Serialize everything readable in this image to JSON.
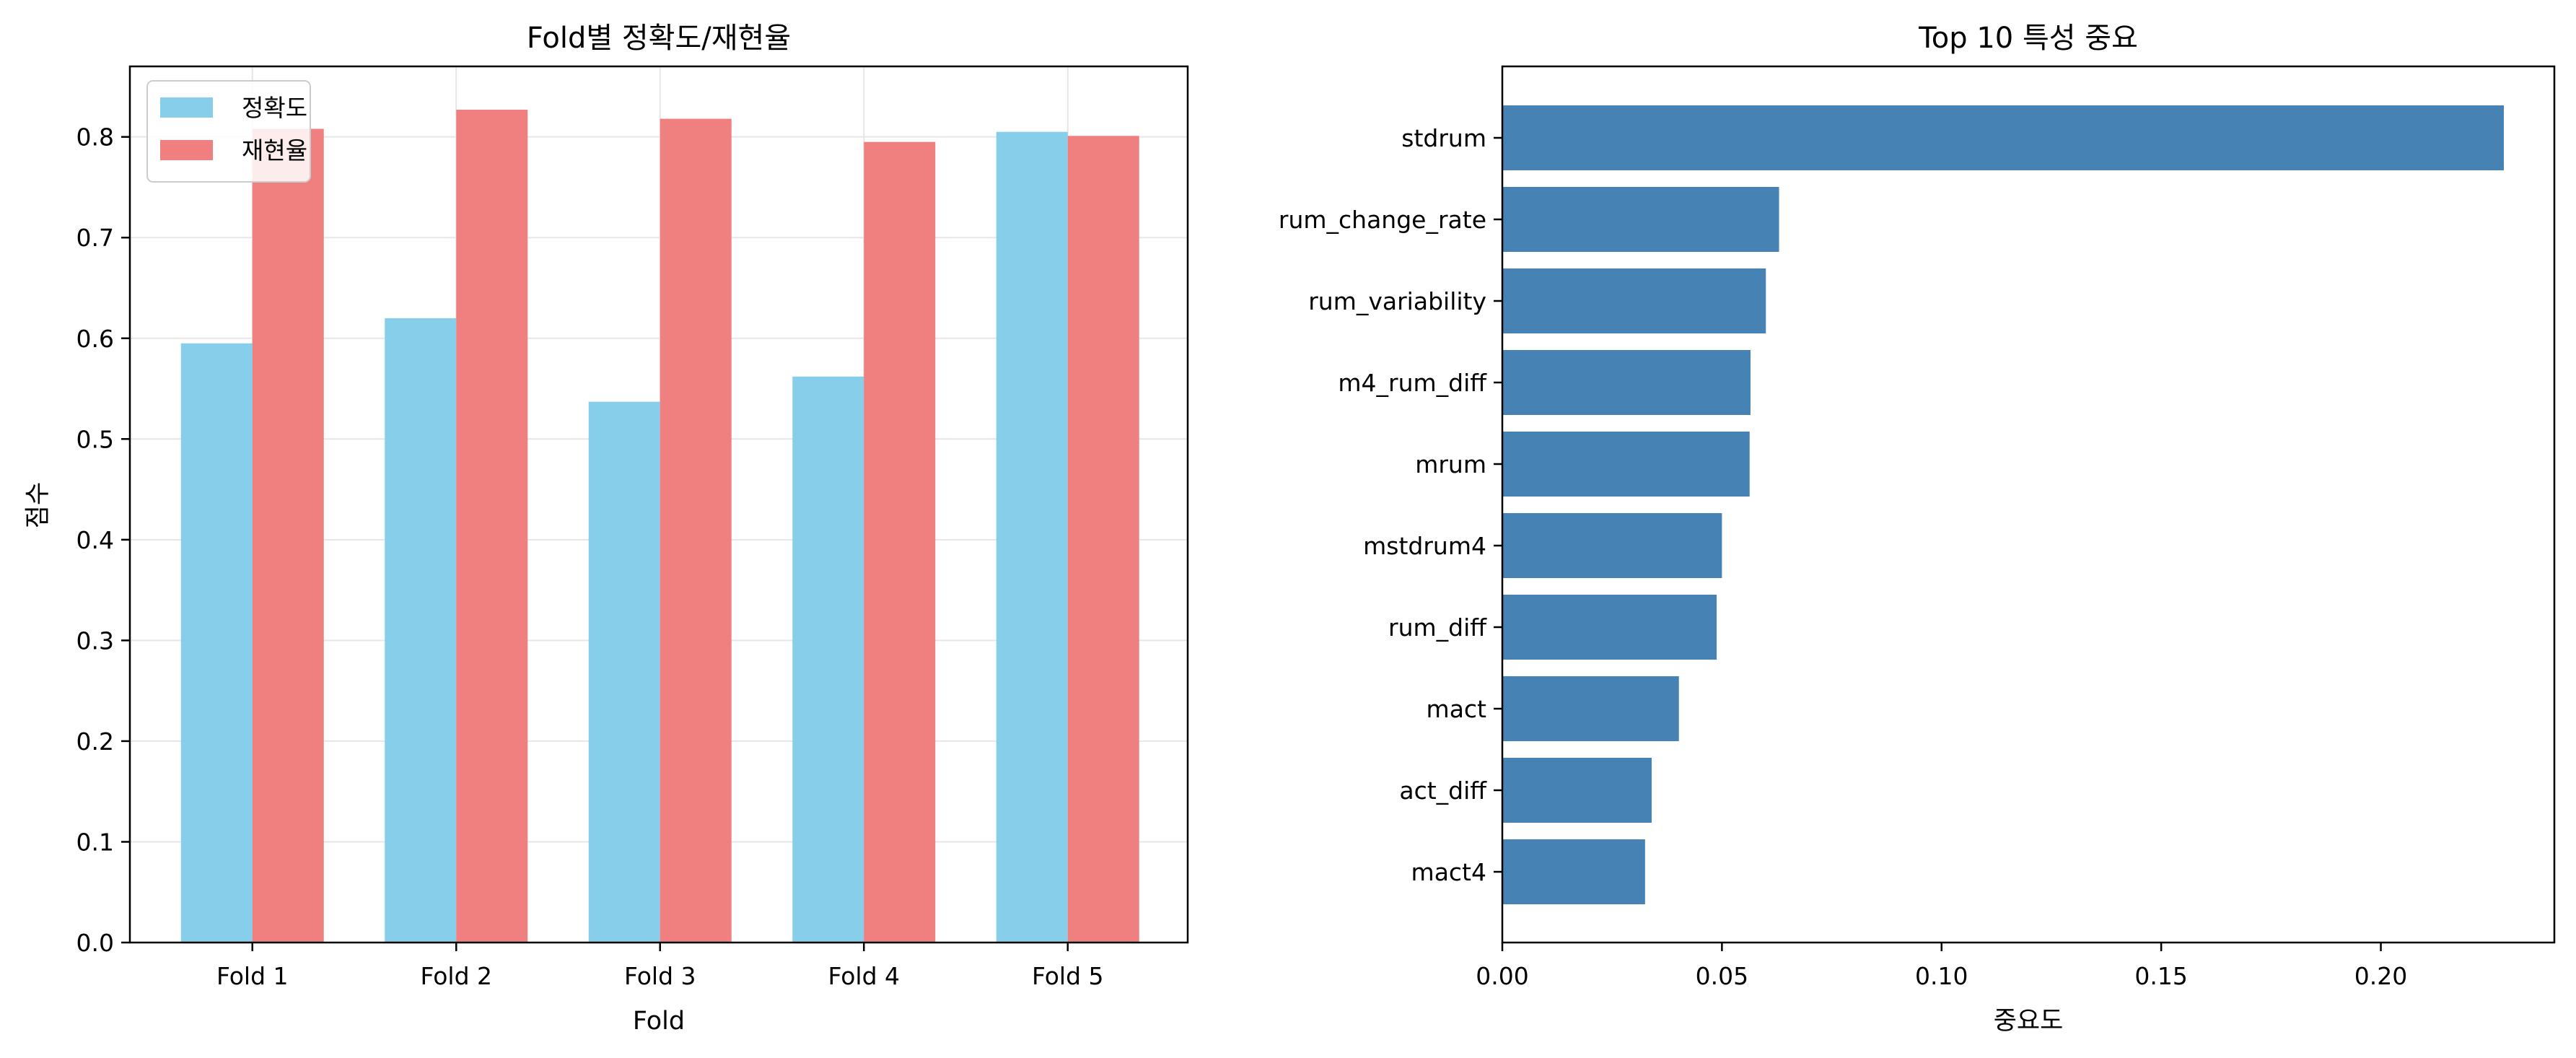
{
  "chart_data": [
    {
      "type": "bar",
      "title": "Fold별 정확도/재현율",
      "xlabel": "Fold",
      "ylabel": "점수",
      "categories": [
        "Fold 1",
        "Fold 2",
        "Fold 3",
        "Fold 4",
        "Fold 5"
      ],
      "ylim": [
        0,
        0.87
      ],
      "yticks": [
        "0.0",
        "0.1",
        "0.2",
        "0.3",
        "0.4",
        "0.5",
        "0.6",
        "0.7",
        "0.8"
      ],
      "grid": true,
      "legend": "upper-left",
      "series": [
        {
          "name": "정확도",
          "color": "#87CEEB",
          "values": [
            0.595,
            0.62,
            0.537,
            0.562,
            0.805
          ]
        },
        {
          "name": "재현율",
          "color": "#F08080",
          "values": [
            0.808,
            0.827,
            0.818,
            0.795,
            0.801
          ]
        }
      ]
    },
    {
      "type": "bar",
      "orientation": "horizontal",
      "title": "Top 10 특성 중요",
      "xlabel": "중요도",
      "ylabel": "",
      "color": "#4682B4",
      "xlim": [
        0,
        0.2395
      ],
      "xticks": [
        "0.00",
        "0.05",
        "0.10",
        "0.15",
        "0.20"
      ],
      "categories": [
        "stdrum",
        "rum_change_rate",
        "rum_variability",
        "m4_rum_diff",
        "mrum",
        "mstdrum4",
        "rum_diff",
        "mact",
        "act_diff",
        "mact4"
      ],
      "values": [
        0.228,
        0.063,
        0.06,
        0.0565,
        0.0563,
        0.05,
        0.0488,
        0.0402,
        0.034,
        0.0325
      ]
    }
  ]
}
